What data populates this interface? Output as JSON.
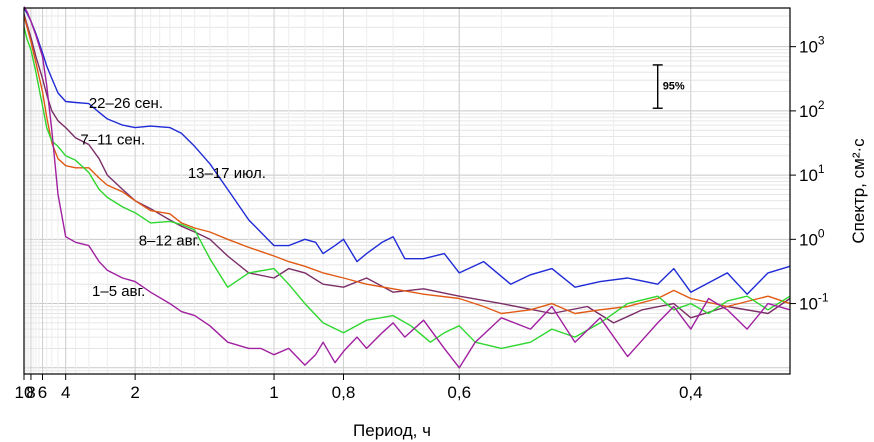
{
  "chart_data": {
    "type": "line",
    "xlabel": "Период, ч",
    "ylabel": "Спектр, см²·с",
    "x_scale": "reciprocal",
    "y_scale": "log",
    "xlim": [
      10,
      0.35
    ],
    "ylim": [
      0.008,
      4000
    ],
    "x_ticks": [
      {
        "value": 10,
        "label": "10"
      },
      {
        "value": 8,
        "label": "8"
      },
      {
        "value": 6,
        "label": "6"
      },
      {
        "value": 4,
        "label": "4"
      },
      {
        "value": 2,
        "label": "2"
      },
      {
        "value": 1,
        "label": "1"
      },
      {
        "value": 0.8,
        "label": "0,8"
      },
      {
        "value": 0.6,
        "label": "0,6"
      },
      {
        "value": 0.4,
        "label": "0,4"
      }
    ],
    "y_ticks": [
      {
        "value": 0.1,
        "base": "10",
        "exp": "-1"
      },
      {
        "value": 1,
        "base": "10",
        "exp": "0"
      },
      {
        "value": 10,
        "base": "10",
        "exp": "1"
      },
      {
        "value": 100,
        "base": "10",
        "exp": "2"
      },
      {
        "value": 1000,
        "base": "10",
        "exp": "3"
      }
    ],
    "grid": true,
    "confidence_bar": {
      "label": "95%",
      "x": 0.42,
      "y_low": 110,
      "y_high": 520
    },
    "series": [
      {
        "name": "22–26 сен.",
        "color": "#1f2bd6",
        "label_at": {
          "x": 3.0,
          "y": 110
        },
        "points": [
          [
            10,
            4000
          ],
          [
            9,
            3300
          ],
          [
            8,
            2500
          ],
          [
            7,
            1600
          ],
          [
            6,
            800
          ],
          [
            5.5,
            500
          ],
          [
            5,
            320
          ],
          [
            4.5,
            190
          ],
          [
            4,
            140
          ],
          [
            3.5,
            135
          ],
          [
            3,
            130
          ],
          [
            2.7,
            95
          ],
          [
            2.5,
            75
          ],
          [
            2.2,
            60
          ],
          [
            2,
            55
          ],
          [
            1.8,
            58
          ],
          [
            1.6,
            55
          ],
          [
            1.5,
            45
          ],
          [
            1.4,
            28
          ],
          [
            1.3,
            15
          ],
          [
            1.2,
            6
          ],
          [
            1.1,
            2
          ],
          [
            1,
            0.8
          ],
          [
            0.95,
            0.8
          ],
          [
            0.9,
            1.0
          ],
          [
            0.87,
            0.9
          ],
          [
            0.85,
            0.6
          ],
          [
            0.82,
            0.8
          ],
          [
            0.8,
            1.0
          ],
          [
            0.77,
            0.45
          ],
          [
            0.75,
            0.6
          ],
          [
            0.72,
            0.9
          ],
          [
            0.7,
            1.1
          ],
          [
            0.68,
            0.5
          ],
          [
            0.65,
            0.5
          ],
          [
            0.62,
            0.6
          ],
          [
            0.6,
            0.3
          ],
          [
            0.57,
            0.45
          ],
          [
            0.54,
            0.2
          ],
          [
            0.52,
            0.28
          ],
          [
            0.5,
            0.35
          ],
          [
            0.48,
            0.18
          ],
          [
            0.46,
            0.22
          ],
          [
            0.44,
            0.25
          ],
          [
            0.42,
            0.2
          ],
          [
            0.41,
            0.35
          ],
          [
            0.4,
            0.15
          ],
          [
            0.38,
            0.3
          ],
          [
            0.37,
            0.14
          ],
          [
            0.36,
            0.3
          ],
          [
            0.35,
            0.38
          ]
        ]
      },
      {
        "name": "7–11 сен.",
        "color": "#7a2e68",
        "label_at": {
          "x": 3.3,
          "y": 30
        },
        "points": [
          [
            10,
            3200
          ],
          [
            9,
            2200
          ],
          [
            8,
            1400
          ],
          [
            7,
            700
          ],
          [
            6,
            320
          ],
          [
            5.5,
            180
          ],
          [
            5,
            100
          ],
          [
            4.5,
            70
          ],
          [
            4,
            55
          ],
          [
            3.5,
            38
          ],
          [
            3,
            30
          ],
          [
            2.7,
            18
          ],
          [
            2.5,
            10
          ],
          [
            2.2,
            6
          ],
          [
            2,
            4
          ],
          [
            1.8,
            3
          ],
          [
            1.6,
            2
          ],
          [
            1.5,
            1.6
          ],
          [
            1.4,
            1.3
          ],
          [
            1.3,
            1.0
          ],
          [
            1.2,
            0.55
          ],
          [
            1.1,
            0.3
          ],
          [
            1,
            0.25
          ],
          [
            0.95,
            0.35
          ],
          [
            0.9,
            0.3
          ],
          [
            0.85,
            0.2
          ],
          [
            0.8,
            0.18
          ],
          [
            0.75,
            0.25
          ],
          [
            0.7,
            0.15
          ],
          [
            0.65,
            0.17
          ],
          [
            0.6,
            0.13
          ],
          [
            0.55,
            0.1
          ],
          [
            0.5,
            0.07
          ],
          [
            0.47,
            0.09
          ],
          [
            0.45,
            0.05
          ],
          [
            0.43,
            0.08
          ],
          [
            0.41,
            0.1
          ],
          [
            0.4,
            0.06
          ],
          [
            0.38,
            0.09
          ],
          [
            0.36,
            0.07
          ],
          [
            0.35,
            0.12
          ]
        ]
      },
      {
        "name": "13–17 июл.",
        "color": "#e05a14",
        "label_at": {
          "x": 1.45,
          "y": 9
        },
        "points": [
          [
            10,
            3000
          ],
          [
            9,
            2000
          ],
          [
            8,
            1200
          ],
          [
            7,
            560
          ],
          [
            6,
            200
          ],
          [
            5.5,
            80
          ],
          [
            5,
            32
          ],
          [
            4.5,
            18
          ],
          [
            4,
            14
          ],
          [
            3.5,
            13
          ],
          [
            3,
            13
          ],
          [
            2.7,
            9
          ],
          [
            2.5,
            7
          ],
          [
            2.2,
            5.5
          ],
          [
            2,
            4
          ],
          [
            1.8,
            2.8
          ],
          [
            1.6,
            2.5
          ],
          [
            1.5,
            1.8
          ],
          [
            1.4,
            1.5
          ],
          [
            1.3,
            1.3
          ],
          [
            1.2,
            1.0
          ],
          [
            1.1,
            0.75
          ],
          [
            1,
            0.55
          ],
          [
            0.95,
            0.45
          ],
          [
            0.9,
            0.38
          ],
          [
            0.85,
            0.3
          ],
          [
            0.8,
            0.25
          ],
          [
            0.75,
            0.2
          ],
          [
            0.7,
            0.17
          ],
          [
            0.65,
            0.14
          ],
          [
            0.6,
            0.12
          ],
          [
            0.57,
            0.09
          ],
          [
            0.55,
            0.07
          ],
          [
            0.52,
            0.08
          ],
          [
            0.5,
            0.1
          ],
          [
            0.48,
            0.07
          ],
          [
            0.46,
            0.08
          ],
          [
            0.44,
            0.09
          ],
          [
            0.42,
            0.12
          ],
          [
            0.41,
            0.16
          ],
          [
            0.4,
            0.12
          ],
          [
            0.38,
            0.09
          ],
          [
            0.36,
            0.13
          ],
          [
            0.35,
            0.1
          ]
        ]
      },
      {
        "name": "8–12 авг.",
        "color": "#2fd62f",
        "label_at": {
          "x": 1.95,
          "y": 0.8
        },
        "points": [
          [
            10,
            2000
          ],
          [
            9,
            1300
          ],
          [
            8,
            900
          ],
          [
            7,
            400
          ],
          [
            6,
            120
          ],
          [
            5.5,
            55
          ],
          [
            5,
            34
          ],
          [
            4.5,
            28
          ],
          [
            4,
            20
          ],
          [
            3.5,
            17
          ],
          [
            3,
            11
          ],
          [
            2.7,
            6
          ],
          [
            2.5,
            4.5
          ],
          [
            2.2,
            3.2
          ],
          [
            2,
            2.6
          ],
          [
            1.8,
            1.8
          ],
          [
            1.6,
            1.9
          ],
          [
            1.5,
            1.7
          ],
          [
            1.4,
            1.4
          ],
          [
            1.3,
            0.5
          ],
          [
            1.2,
            0.18
          ],
          [
            1.1,
            0.3
          ],
          [
            1,
            0.35
          ],
          [
            0.95,
            0.2
          ],
          [
            0.9,
            0.1
          ],
          [
            0.85,
            0.05
          ],
          [
            0.8,
            0.035
          ],
          [
            0.75,
            0.055
          ],
          [
            0.7,
            0.065
          ],
          [
            0.67,
            0.045
          ],
          [
            0.64,
            0.025
          ],
          [
            0.62,
            0.035
          ],
          [
            0.6,
            0.045
          ],
          [
            0.58,
            0.025
          ],
          [
            0.55,
            0.02
          ],
          [
            0.52,
            0.025
          ],
          [
            0.5,
            0.04
          ],
          [
            0.48,
            0.03
          ],
          [
            0.46,
            0.05
          ],
          [
            0.44,
            0.1
          ],
          [
            0.42,
            0.13
          ],
          [
            0.41,
            0.08
          ],
          [
            0.4,
            0.1
          ],
          [
            0.39,
            0.07
          ],
          [
            0.38,
            0.11
          ],
          [
            0.37,
            0.13
          ],
          [
            0.36,
            0.08
          ],
          [
            0.35,
            0.13
          ]
        ]
      },
      {
        "name": "1–5 авг.",
        "color": "#a020a0",
        "label_at": {
          "x": 2.9,
          "y": 0.13
        },
        "points": [
          [
            10,
            4200
          ],
          [
            9,
            3500
          ],
          [
            8,
            2500
          ],
          [
            7,
            1500
          ],
          [
            6,
            700
          ],
          [
            5.5,
            250
          ],
          [
            5,
            50
          ],
          [
            4.5,
            5
          ],
          [
            4,
            1.1
          ],
          [
            3.5,
            0.9
          ],
          [
            3,
            0.8
          ],
          [
            2.7,
            0.45
          ],
          [
            2.5,
            0.33
          ],
          [
            2.2,
            0.25
          ],
          [
            2,
            0.22
          ],
          [
            1.8,
            0.15
          ],
          [
            1.6,
            0.1
          ],
          [
            1.5,
            0.075
          ],
          [
            1.4,
            0.065
          ],
          [
            1.3,
            0.045
          ],
          [
            1.2,
            0.025
          ],
          [
            1.1,
            0.02
          ],
          [
            1.05,
            0.02
          ],
          [
            1,
            0.016
          ],
          [
            0.95,
            0.02
          ],
          [
            0.9,
            0.011
          ],
          [
            0.87,
            0.016
          ],
          [
            0.85,
            0.025
          ],
          [
            0.82,
            0.012
          ],
          [
            0.8,
            0.018
          ],
          [
            0.77,
            0.03
          ],
          [
            0.75,
            0.02
          ],
          [
            0.72,
            0.035
          ],
          [
            0.7,
            0.05
          ],
          [
            0.68,
            0.03
          ],
          [
            0.65,
            0.055
          ],
          [
            0.62,
            0.02
          ],
          [
            0.6,
            0.01
          ],
          [
            0.58,
            0.025
          ],
          [
            0.55,
            0.06
          ],
          [
            0.52,
            0.04
          ],
          [
            0.5,
            0.09
          ],
          [
            0.48,
            0.025
          ],
          [
            0.46,
            0.06
          ],
          [
            0.44,
            0.015
          ],
          [
            0.42,
            0.05
          ],
          [
            0.41,
            0.09
          ],
          [
            0.4,
            0.04
          ],
          [
            0.39,
            0.12
          ],
          [
            0.38,
            0.08
          ],
          [
            0.37,
            0.04
          ],
          [
            0.36,
            0.1
          ],
          [
            0.35,
            0.08
          ]
        ]
      }
    ]
  }
}
